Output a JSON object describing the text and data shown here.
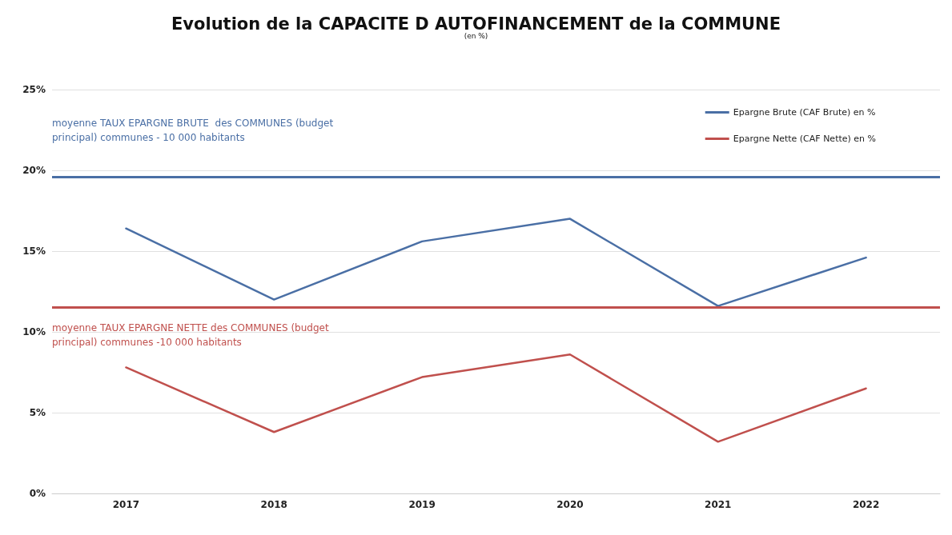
{
  "chart_data": {
    "type": "line",
    "title": "Evolution de la CAPACITE D AUTOFINANCEMENT de la COMMUNE",
    "subtitle": "(en %)",
    "categories": [
      "2017",
      "2018",
      "2019",
      "2020",
      "2021",
      "2022"
    ],
    "series": [
      {
        "name": "Epargne Brute (CAF Brute) en %",
        "color": "#4a6fa5",
        "values": [
          16.4,
          12.0,
          15.6,
          17.0,
          11.6,
          14.6
        ]
      },
      {
        "name": "Epargne Nette (CAF Nette) en %",
        "color": "#c0504d",
        "values": [
          7.8,
          3.8,
          7.2,
          8.6,
          3.2,
          6.5
        ]
      }
    ],
    "ylim": [
      0,
      25
    ],
    "yticks": [
      {
        "value": 0,
        "label": "0%"
      },
      {
        "value": 5,
        "label": "5%"
      },
      {
        "value": 10,
        "label": "10%"
      },
      {
        "value": 15,
        "label": "15%"
      },
      {
        "value": 20,
        "label": "20%"
      },
      {
        "value": 25,
        "label": "25%"
      }
    ],
    "ref_lines": [
      {
        "axis": "y",
        "value": 19.6,
        "label": "moyenne TAUX EPARGNE BRUTE  des COMMUNES (budget principal) communes - 10 000 habitants",
        "color": "#4a6fa5"
      },
      {
        "axis": "y",
        "value": 11.5,
        "label": "moyenne TAUX EPARGNE NETTE des COMMUNES (budget principal) communes -10 000 habitants",
        "color": "#c0504d"
      }
    ],
    "grid": "y",
    "legend": "top right",
    "marker": "none",
    "line_style": "solid"
  }
}
